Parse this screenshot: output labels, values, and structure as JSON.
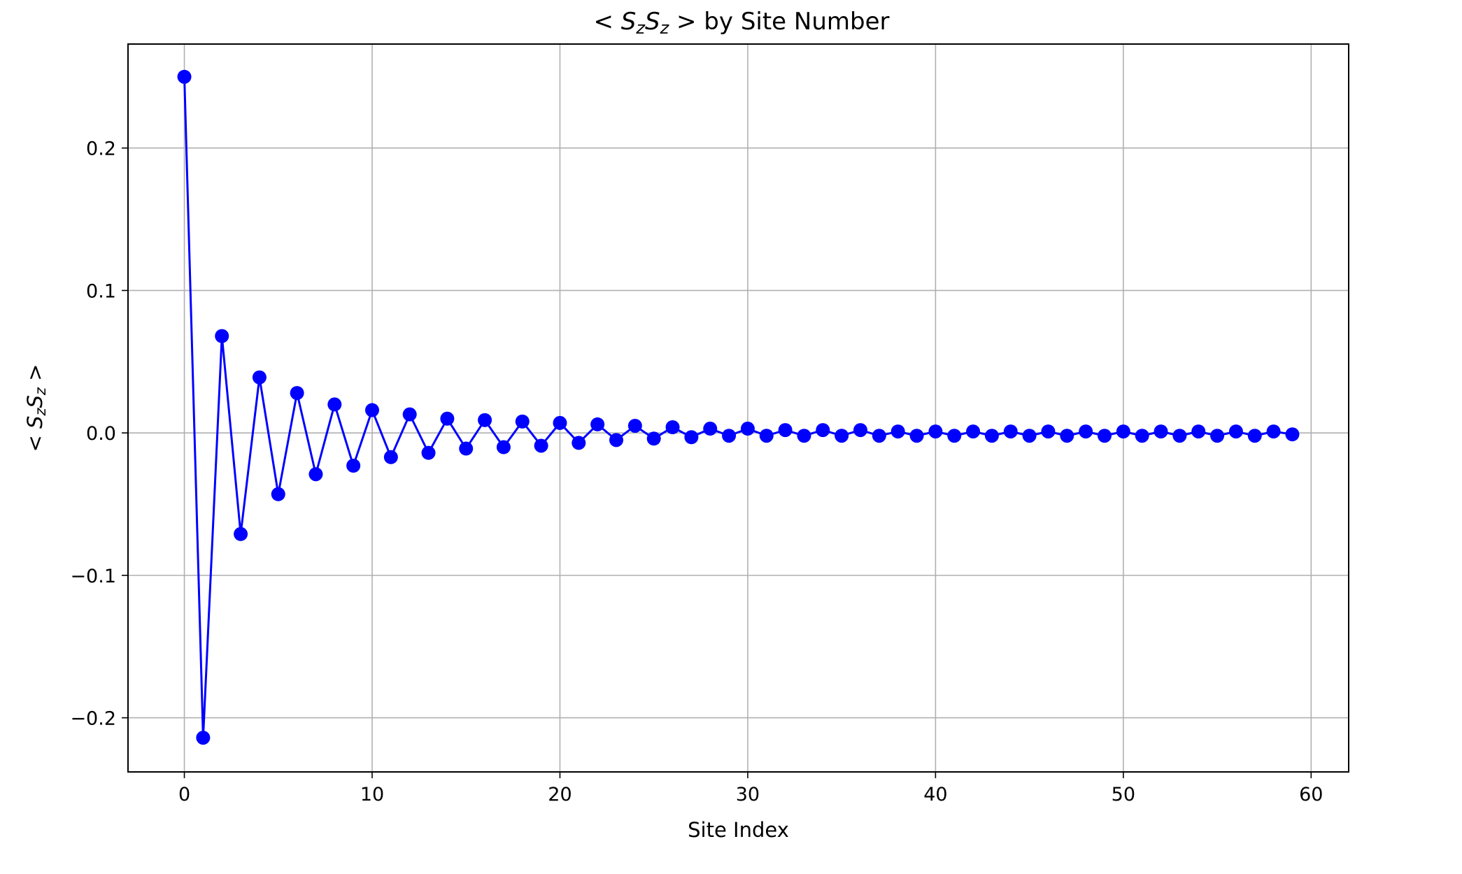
{
  "chart_data": {
    "type": "line",
    "title": "< SzSz >  by Site Number",
    "title_parts": [
      "< ",
      "S",
      "z",
      "S",
      "z",
      " >",
      "  by Site Number"
    ],
    "xlabel": "Site Index",
    "ylabel_parts": [
      "< ",
      "S",
      "z",
      "S",
      "z",
      " >"
    ],
    "xlim": [
      -3,
      62
    ],
    "ylim": [
      -0.238,
      0.273
    ],
    "xticks": [
      0,
      10,
      20,
      30,
      40,
      50,
      60
    ],
    "yticks": [
      -0.2,
      -0.1,
      0.0,
      0.1,
      0.2
    ],
    "xtick_labels": [
      "0",
      "10",
      "20",
      "30",
      "40",
      "50",
      "60"
    ],
    "ytick_labels": [
      "−0.2",
      "−0.1",
      "0.0",
      "0.1",
      "0.2"
    ],
    "grid": true,
    "series": [
      {
        "color": "#0000ff",
        "marker": "circle",
        "x": [
          0,
          1,
          2,
          3,
          4,
          5,
          6,
          7,
          8,
          9,
          10,
          11,
          12,
          13,
          14,
          15,
          16,
          17,
          18,
          19,
          20,
          21,
          22,
          23,
          24,
          25,
          26,
          27,
          28,
          29,
          30,
          31,
          32,
          33,
          34,
          35,
          36,
          37,
          38,
          39,
          40,
          41,
          42,
          43,
          44,
          45,
          46,
          47,
          48,
          49,
          50,
          51,
          52,
          53,
          54,
          55,
          56,
          57,
          58,
          59
        ],
        "y": [
          0.25,
          -0.214,
          0.068,
          -0.071,
          0.039,
          -0.043,
          0.028,
          -0.029,
          0.02,
          -0.023,
          0.016,
          -0.017,
          0.013,
          -0.014,
          0.01,
          -0.011,
          0.009,
          -0.01,
          0.008,
          -0.009,
          0.007,
          -0.007,
          0.006,
          -0.005,
          0.005,
          -0.004,
          0.004,
          -0.003,
          0.003,
          -0.002,
          0.003,
          -0.002,
          0.002,
          -0.002,
          0.002,
          -0.002,
          0.002,
          -0.002,
          0.001,
          -0.002,
          0.001,
          -0.002,
          0.001,
          -0.002,
          0.001,
          -0.002,
          0.001,
          -0.002,
          0.001,
          -0.002,
          0.001,
          -0.002,
          0.001,
          -0.002,
          0.001,
          -0.002,
          0.001,
          -0.002,
          0.001,
          -0.001
        ]
      }
    ]
  }
}
